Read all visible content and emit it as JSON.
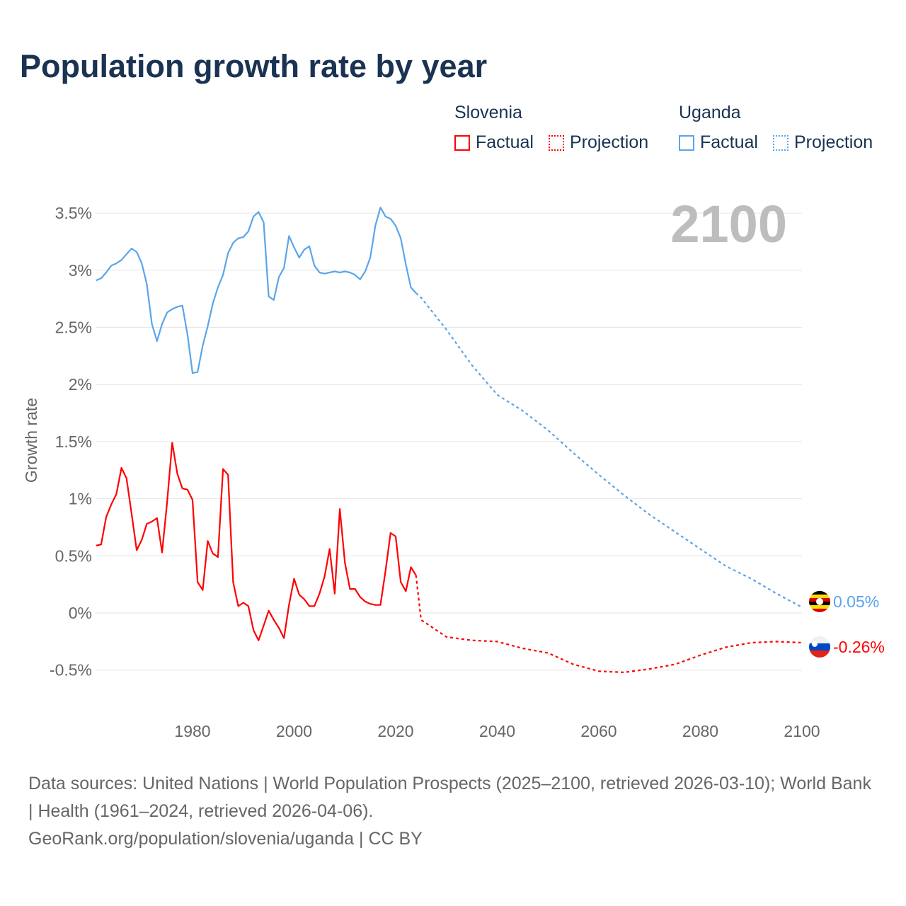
{
  "title": "Population growth rate by year",
  "legend": {
    "groups": [
      {
        "country": "Slovenia",
        "factual": "Factual",
        "projection": "Projection",
        "color": "#ff0000"
      },
      {
        "country": "Uganda",
        "factual": "Factual",
        "projection": "Projection",
        "color": "#5aa5ea"
      }
    ]
  },
  "footer": {
    "sources": "Data sources: United Nations | World Population Prospects (2025–2100, retrieved 2026-03-10); World Bank | Health (1961–2024, retrieved 2026-04-06).",
    "credit": "GeoRank.org/population/slovenia/uganda | CC BY"
  },
  "chart_data": {
    "type": "line",
    "title": "Population growth rate by year",
    "ylabel": "Growth rate",
    "xlabel": "",
    "year_overlay": "2100",
    "xlim": [
      1961,
      2100
    ],
    "ylim": [
      -0.5,
      3.5
    ],
    "x_ticks": [
      "1980",
      "2000",
      "2020",
      "2040",
      "2060",
      "2080",
      "2100"
    ],
    "y_ticks": [
      {
        "v": -0.5,
        "label": "-0.5%"
      },
      {
        "v": 0,
        "label": "0%"
      },
      {
        "v": 0.5,
        "label": "0.5%"
      },
      {
        "v": 1,
        "label": "1%"
      },
      {
        "v": 1.5,
        "label": "1.5%"
      },
      {
        "v": 2,
        "label": "2%"
      },
      {
        "v": 2.5,
        "label": "2.5%"
      },
      {
        "v": 3,
        "label": "3%"
      },
      {
        "v": 3.5,
        "label": "3.5%"
      }
    ],
    "grid": true,
    "series": [
      {
        "name": "Uganda",
        "color": "#5aa5ea",
        "end_label": "0.05%",
        "flag": "uganda-flag",
        "factual_start": 1961,
        "factual": [
          2.91,
          2.93,
          2.98,
          3.04,
          3.06,
          3.09,
          3.14,
          3.19,
          3.16,
          3.06,
          2.88,
          2.53,
          2.38,
          2.53,
          2.63,
          2.66,
          2.68,
          2.69,
          2.44,
          2.1,
          2.11,
          2.34,
          2.51,
          2.71,
          2.85,
          2.96,
          3.15,
          3.24,
          3.28,
          3.29,
          3.34,
          3.47,
          3.51,
          3.42,
          2.77,
          2.74,
          2.94,
          3.02,
          3.3,
          3.2,
          3.11,
          3.18,
          3.21,
          3.04,
          2.98,
          2.97,
          2.98,
          2.99,
          2.98,
          2.99,
          2.98,
          2.96,
          2.92,
          2.99,
          3.11,
          3.39,
          3.55,
          3.47,
          3.45,
          3.39,
          3.28,
          3.05,
          2.85,
          2.8
        ],
        "projection_years": [
          2024,
          2025,
          2030,
          2035,
          2040,
          2045,
          2050,
          2055,
          2060,
          2065,
          2070,
          2075,
          2080,
          2085,
          2090,
          2095,
          2100
        ],
        "projection": [
          2.8,
          2.76,
          2.48,
          2.17,
          1.91,
          1.77,
          1.6,
          1.4,
          1.21,
          1.03,
          0.86,
          0.71,
          0.56,
          0.41,
          0.3,
          0.17,
          0.05
        ]
      },
      {
        "name": "Slovenia",
        "color": "#ff0000",
        "end_label": "-0.26%",
        "flag": "slovenia-flag",
        "factual_start": 1961,
        "factual": [
          0.59,
          0.6,
          0.84,
          0.95,
          1.04,
          1.27,
          1.18,
          0.87,
          0.55,
          0.64,
          0.78,
          0.8,
          0.83,
          0.53,
          0.97,
          1.49,
          1.22,
          1.09,
          1.08,
          0.99,
          0.27,
          0.2,
          0.63,
          0.52,
          0.49,
          1.26,
          1.21,
          0.27,
          0.06,
          0.09,
          0.06,
          -0.15,
          -0.24,
          -0.11,
          0.02,
          -0.06,
          -0.13,
          -0.22,
          0.07,
          0.3,
          0.16,
          0.12,
          0.06,
          0.06,
          0.17,
          0.32,
          0.56,
          0.17,
          0.91,
          0.44,
          0.21,
          0.21,
          0.14,
          0.1,
          0.08,
          0.07,
          0.07,
          0.37,
          0.7,
          0.67,
          0.27,
          0.19,
          0.4,
          0.33
        ],
        "projection_years": [
          2024,
          2025,
          2030,
          2035,
          2040,
          2045,
          2050,
          2055,
          2060,
          2065,
          2070,
          2075,
          2080,
          2085,
          2090,
          2095,
          2100
        ],
        "projection": [
          0.33,
          -0.06,
          -0.21,
          -0.24,
          -0.25,
          -0.31,
          -0.35,
          -0.45,
          -0.51,
          -0.52,
          -0.49,
          -0.45,
          -0.37,
          -0.3,
          -0.26,
          -0.25,
          -0.26
        ]
      }
    ]
  }
}
